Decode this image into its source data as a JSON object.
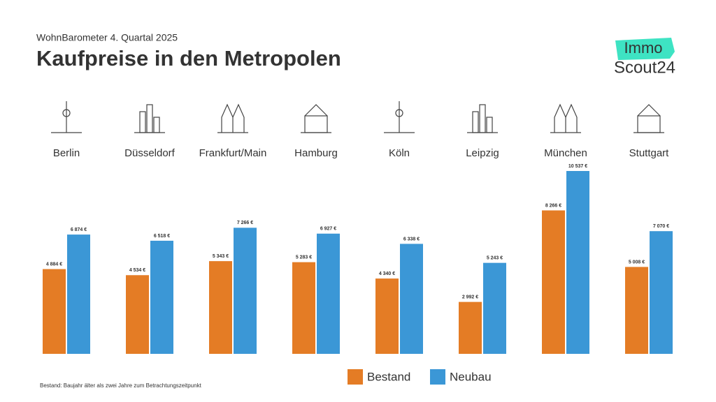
{
  "chart_data": {
    "type": "bar",
    "subtitle": "WohnBarometer 4. Quartal 2025",
    "title": "Kaufpreise in den Metropolen",
    "categories": [
      "Berlin",
      "Düsseldorf",
      "Frankfurt/Main",
      "Hamburg",
      "Köln",
      "Leipzig",
      "München",
      "Stuttgart"
    ],
    "series": [
      {
        "name": "Bestand",
        "color": "#e47c25",
        "values": [
          4884,
          4534,
          5343,
          5283,
          4340,
          2992,
          8266,
          5008
        ],
        "value_labels": [
          "4 884 €",
          "4 534 €",
          "5 343 €",
          "5 283 €",
          "4 340 €",
          "2 992 €",
          "8 266 €",
          "5 008 €"
        ]
      },
      {
        "name": "Neubau",
        "color": "#3b97d6",
        "values": [
          6874,
          6518,
          7266,
          6927,
          6338,
          5243,
          10537,
          7070
        ],
        "value_labels": [
          "6 874 €",
          "6 518 €",
          "7 266 €",
          "6 927 €",
          "6 338 €",
          "5 243 €",
          "10 537 €",
          "7 070 €"
        ]
      }
    ],
    "footnote": "Bestand: Baujahr älter als zwei Jahre zum Betrachtungszeitpunkt"
  },
  "logo": {
    "line1": "Immo",
    "line2": "Scout24"
  }
}
